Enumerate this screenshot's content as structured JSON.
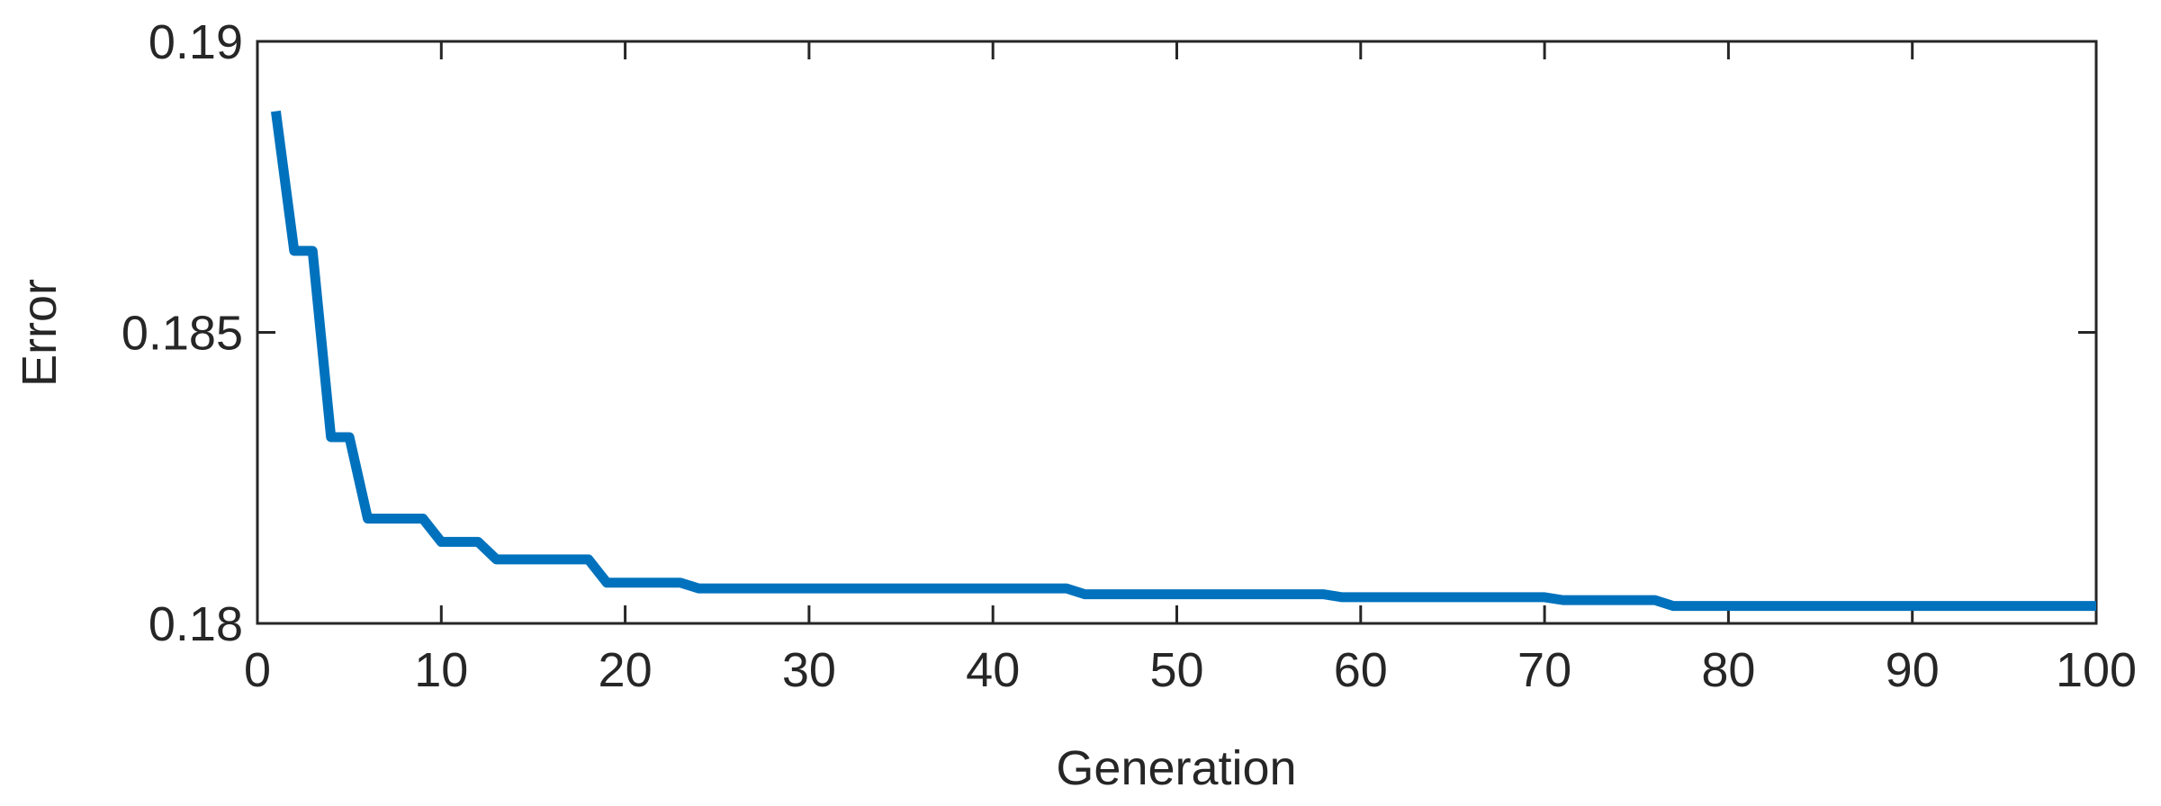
{
  "chart_data": {
    "type": "line",
    "x_label": "Generation",
    "y_label": "Error",
    "x": [
      1,
      2,
      3,
      4,
      5,
      6,
      7,
      8,
      9,
      10,
      11,
      12,
      13,
      14,
      15,
      16,
      17,
      18,
      19,
      20,
      21,
      22,
      23,
      24,
      25,
      26,
      27,
      28,
      29,
      30,
      31,
      32,
      33,
      34,
      35,
      36,
      37,
      38,
      39,
      40,
      41,
      42,
      43,
      44,
      45,
      46,
      47,
      48,
      49,
      50,
      51,
      52,
      53,
      54,
      55,
      56,
      57,
      58,
      59,
      60,
      61,
      62,
      63,
      64,
      65,
      66,
      67,
      68,
      69,
      70,
      71,
      72,
      73,
      74,
      75,
      76,
      77,
      78,
      79,
      80,
      81,
      82,
      83,
      84,
      85,
      86,
      87,
      88,
      89,
      90,
      91,
      92,
      93,
      94,
      95,
      96,
      97,
      98,
      99,
      100
    ],
    "series": [
      {
        "color": "#0072bd",
        "values": [
          0.1888,
          0.1864,
          0.1864,
          0.1832,
          0.1832,
          0.1818,
          0.1818,
          0.1818,
          0.1818,
          0.1814,
          0.1814,
          0.1814,
          0.1811,
          0.1811,
          0.1811,
          0.1811,
          0.1811,
          0.1811,
          0.1807,
          0.1807,
          0.1807,
          0.1807,
          0.1807,
          0.1806,
          0.1806,
          0.1806,
          0.1806,
          0.1806,
          0.1806,
          0.1806,
          0.1806,
          0.1806,
          0.1806,
          0.1806,
          0.1806,
          0.1806,
          0.1806,
          0.1806,
          0.1806,
          0.1806,
          0.1806,
          0.1806,
          0.1806,
          0.1806,
          0.1805,
          0.1805,
          0.1805,
          0.1805,
          0.1805,
          0.1805,
          0.1805,
          0.1805,
          0.1805,
          0.1805,
          0.1805,
          0.1805,
          0.1805,
          0.1805,
          0.18045,
          0.18045,
          0.18045,
          0.18045,
          0.18045,
          0.18045,
          0.18045,
          0.18045,
          0.18045,
          0.18045,
          0.18045,
          0.18045,
          0.1804,
          0.1804,
          0.1804,
          0.1804,
          0.1804,
          0.1804,
          0.1803,
          0.1803,
          0.1803,
          0.1803,
          0.1803,
          0.1803,
          0.1803,
          0.1803,
          0.1803,
          0.1803,
          0.1803,
          0.1803,
          0.1803,
          0.1803,
          0.1803,
          0.1803,
          0.1803,
          0.1803,
          0.1803,
          0.1803,
          0.1803,
          0.1803,
          0.1803,
          0.1803
        ]
      }
    ],
    "xlim": [
      0,
      100
    ],
    "xticks": [
      0,
      10,
      20,
      30,
      40,
      50,
      60,
      70,
      80,
      90,
      100
    ],
    "ylim": [
      0.18,
      0.19
    ],
    "yticks": [
      0.18,
      0.185,
      0.19
    ]
  }
}
